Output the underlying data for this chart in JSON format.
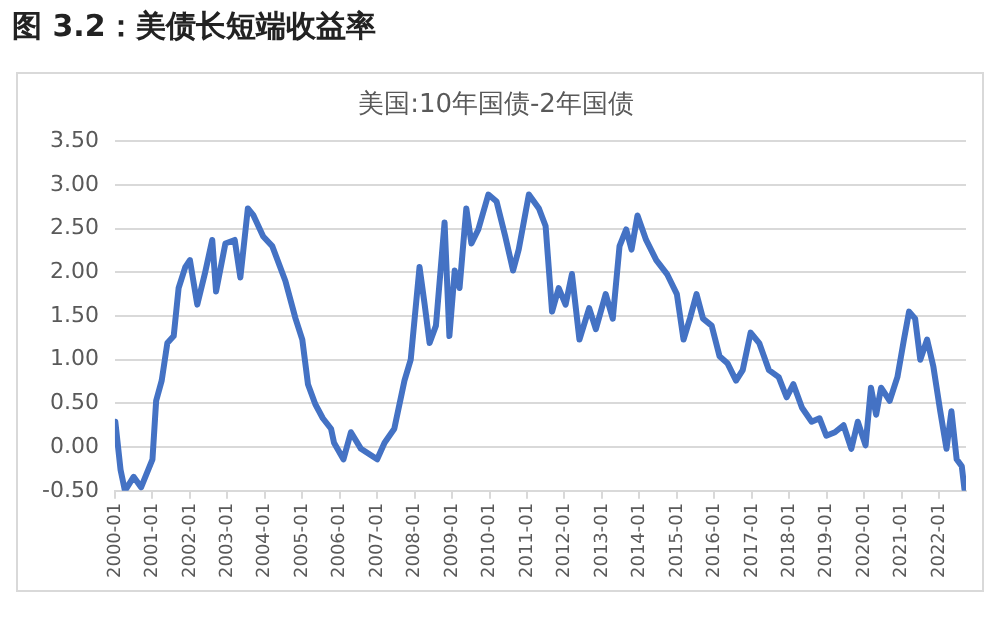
{
  "chart_data": {
    "type": "line",
    "title": "美国:10年国债-2年国债",
    "subtitle": "图 3.2：美债长短端收益率",
    "x": [
      "2000-01-05",
      "2000-02-25",
      "2000-04-08",
      "2000-07-01",
      "2000-09-12",
      "2001-01-01",
      "2001-02-06",
      "2001-04-01",
      "2001-05-26",
      "2001-07-27",
      "2001-09-13",
      "2001-11-17",
      "2002-01-01",
      "2002-03-14",
      "2002-05-26",
      "2002-08-07",
      "2002-09-13",
      "2002-12-13",
      "2003-03-14",
      "2003-05-08",
      "2003-07-20",
      "2003-09-13",
      "2003-12-17",
      "2004-03-14",
      "2004-07-20",
      "2004-10-27",
      "2005-01-01",
      "2005-02-25",
      "2005-05-08",
      "2005-07-20",
      "2005-10-08",
      "2005-11-06",
      "2006-02-06",
      "2006-04-20",
      "2006-07-27",
      "2007-01-01",
      "2007-03-14",
      "2007-06-17",
      "2007-09-24",
      "2007-11-24",
      "2008-02-18",
      "2008-04-08",
      "2008-05-26",
      "2008-07-27",
      "2008-10-19",
      "2008-12-05",
      "2009-01-26",
      "2009-03-14",
      "2009-05-19",
      "2009-07-08",
      "2009-09-13",
      "2009-12-20",
      "2010-03-10",
      "2010-06-03",
      "2010-08-18",
      "2010-10-12",
      "2011-01-19",
      "2011-04-27",
      "2011-07-01",
      "2011-09-02",
      "2011-11-06",
      "2012-01-12",
      "2012-03-14",
      "2012-05-26",
      "2012-08-29",
      "2012-11-02",
      "2013-02-06",
      "2013-04-16",
      "2013-06-21",
      "2013-08-25",
      "2013-10-16",
      "2013-12-13",
      "2014-03-07",
      "2014-06-14",
      "2014-09-27",
      "2015-01-01",
      "2015-03-07",
      "2015-05-08",
      "2015-07-12",
      "2015-09-13",
      "2015-12-06",
      "2016-02-21",
      "2016-05-08",
      "2016-07-31",
      "2016-10-04",
      "2016-12-20",
      "2017-03-14",
      "2017-06-17",
      "2017-09-20",
      "2017-12-06",
      "2018-02-10",
      "2018-05-05",
      "2018-08-07",
      "2018-10-23",
      "2018-12-28",
      "2019-03-22",
      "2019-06-14",
      "2019-08-29",
      "2019-10-31",
      "2020-01-15",
      "2020-03-07",
      "2020-04-27",
      "2020-06-14",
      "2020-09-06",
      "2020-11-20",
      "2021-01-23",
      "2021-03-14",
      "2021-05-12",
      "2021-07-01",
      "2021-09-06",
      "2021-11-06",
      "2022-01-12",
      "2022-03-14",
      "2022-05-01",
      "2022-06-21",
      "2022-08-10",
      "2022-09-05"
    ],
    "series": [
      {
        "color": "#4472c4",
        "values": [
          0.29,
          -0.26,
          -0.5,
          -0.34,
          -0.46,
          -0.14,
          0.53,
          0.76,
          1.19,
          1.27,
          1.82,
          2.06,
          2.14,
          1.63,
          1.98,
          2.37,
          1.78,
          2.33,
          2.37,
          1.94,
          2.73,
          2.65,
          2.41,
          2.3,
          1.9,
          1.47,
          1.23,
          0.72,
          0.49,
          0.33,
          0.21,
          0.05,
          -0.14,
          0.17,
          -0.02,
          -0.14,
          0.05,
          0.21,
          0.76,
          1.0,
          2.06,
          1.63,
          1.19,
          1.39,
          2.57,
          1.27,
          2.02,
          1.82,
          2.73,
          2.33,
          2.49,
          2.89,
          2.81,
          2.41,
          2.02,
          2.26,
          2.89,
          2.73,
          2.53,
          1.55,
          1.82,
          1.63,
          1.98,
          1.23,
          1.59,
          1.35,
          1.75,
          1.47,
          2.3,
          2.49,
          2.26,
          2.65,
          2.37,
          2.14,
          1.98,
          1.75,
          1.23,
          1.47,
          1.75,
          1.47,
          1.39,
          1.04,
          0.96,
          0.76,
          0.88,
          1.31,
          1.19,
          0.88,
          0.8,
          0.57,
          0.72,
          0.45,
          0.29,
          0.33,
          0.13,
          0.17,
          0.25,
          -0.02,
          0.29,
          0.02,
          0.68,
          0.37,
          0.68,
          0.53,
          0.8,
          1.23,
          1.55,
          1.47,
          1.0,
          1.23,
          0.92,
          0.41,
          -0.02,
          0.41,
          -0.14,
          -0.22,
          -0.48
        ]
      }
    ],
    "xlim": [
      "2000-01-01",
      "2022-09-20"
    ],
    "xticks": [
      "2000-01",
      "2001-01",
      "2002-01",
      "2003-01",
      "2004-01",
      "2005-01",
      "2006-01",
      "2007-01",
      "2008-01",
      "2009-01",
      "2010-01",
      "2011-01",
      "2012-01",
      "2013-01",
      "2014-01",
      "2015-01",
      "2016-01",
      "2017-01",
      "2018-01",
      "2019-01",
      "2020-01",
      "2021-01",
      "2022-01"
    ],
    "ylim": [
      -0.5,
      3.5
    ],
    "yticks": [
      {
        "value": -0.5,
        "label": "-0.50"
      },
      {
        "value": 0,
        "label": "0.00"
      },
      {
        "value": 0.5,
        "label": "0.50"
      },
      {
        "value": 1,
        "label": "1.00"
      },
      {
        "value": 1.5,
        "label": "1.50"
      },
      {
        "value": 2,
        "label": "2.00"
      },
      {
        "value": 2.5,
        "label": "2.50"
      },
      {
        "value": 3,
        "label": "3.00"
      },
      {
        "value": 3.5,
        "label": "3.50"
      }
    ],
    "grid": "y",
    "marker": "none",
    "line_style": "solid"
  }
}
